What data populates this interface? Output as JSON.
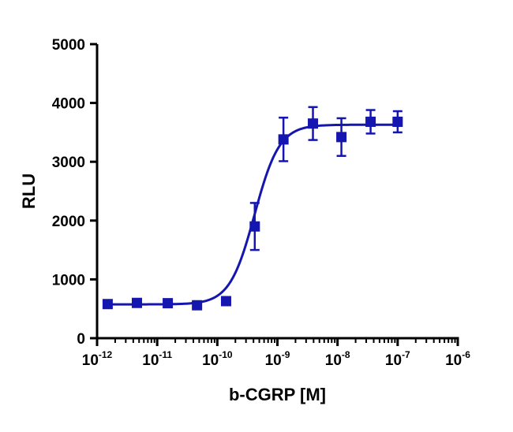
{
  "chart_data": {
    "type": "scatter",
    "xlabel": "b-CGRP [M]",
    "ylabel": "RLU",
    "x_scale": "log",
    "xlim": [
      1e-12,
      1e-06
    ],
    "ylim": [
      0,
      5000
    ],
    "x_ticks": [
      {
        "base": "10",
        "exp": "-12"
      },
      {
        "base": "10",
        "exp": "-11"
      },
      {
        "base": "10",
        "exp": "-10"
      },
      {
        "base": "10",
        "exp": "-9"
      },
      {
        "base": "10",
        "exp": "-8"
      },
      {
        "base": "10",
        "exp": "-7"
      },
      {
        "base": "10",
        "exp": "-6"
      }
    ],
    "y_ticks": [
      "0",
      "1000",
      "2000",
      "3000",
      "4000",
      "5000"
    ],
    "color": "#1515b0",
    "marker": "square",
    "grid": false,
    "series": [
      {
        "x": [
          1.5e-12,
          4.6e-12,
          1.5e-11,
          4.6e-11,
          1.4e-10,
          4.2e-10,
          1.26e-09,
          3.9e-09,
          1.16e-08,
          3.55e-08,
          1e-07
        ],
        "y": [
          580,
          600,
          595,
          560,
          630,
          1900,
          3380,
          3650,
          3420,
          3680,
          3680
        ],
        "error": [
          30,
          30,
          30,
          30,
          30,
          400,
          370,
          280,
          320,
          200,
          180
        ]
      }
    ],
    "fit": {
      "type": "sigmoidal dose-response",
      "bottom": 575,
      "top": 3630,
      "log_ec50": -9.38,
      "hill_slope": 2.1,
      "x_range": [
        1.5e-12,
        1e-07
      ]
    }
  }
}
